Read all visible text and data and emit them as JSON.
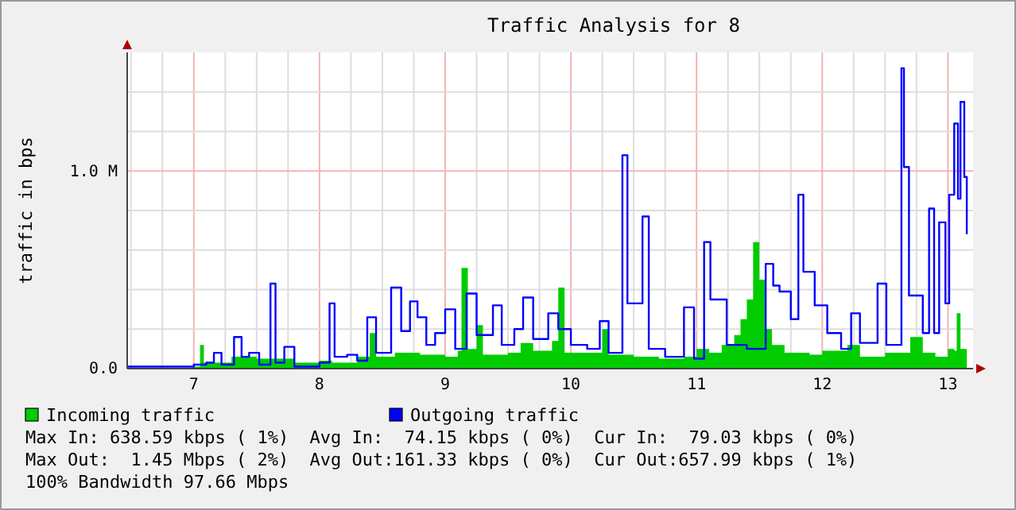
{
  "chart_data": {
    "type": "step",
    "title": "Traffic Analysis for 8",
    "ylabel": "traffic in bps",
    "xlim": [
      6.47,
      13.2
    ],
    "xticks": [
      7,
      8,
      9,
      10,
      11,
      12,
      13,
      {
        "value": 6.5,
        "label": null
      },
      {
        "value": 6.75,
        "label": null
      },
      {
        "value": 7.25,
        "label": null
      },
      {
        "value": 7.5,
        "label": null
      },
      {
        "value": 7.75,
        "label": null
      },
      {
        "value": 8.25,
        "label": null
      },
      {
        "value": 8.5,
        "label": null
      },
      {
        "value": 8.75,
        "label": null
      },
      {
        "value": 9.25,
        "label": null
      },
      {
        "value": 9.5,
        "label": null
      },
      {
        "value": 9.75,
        "label": null
      },
      {
        "value": 10.25,
        "label": null
      },
      {
        "value": 10.5,
        "label": null
      },
      {
        "value": 10.75,
        "label": null
      },
      {
        "value": 11.25,
        "label": null
      },
      {
        "value": 11.5,
        "label": null
      },
      {
        "value": 11.75,
        "label": null
      },
      {
        "value": 12.25,
        "label": null
      },
      {
        "value": 12.5,
        "label": null
      },
      {
        "value": 12.75,
        "label": null
      }
    ],
    "ylim": [
      0,
      1600000
    ],
    "yticks": [
      {
        "value": 0,
        "label": "0.0"
      },
      {
        "value": 1000000,
        "label": "1.0 M"
      },
      {
        "value": 200000,
        "label": null
      },
      {
        "value": 400000,
        "label": null
      },
      {
        "value": 600000,
        "label": null
      },
      {
        "value": 800000,
        "label": null
      },
      {
        "value": 1200000,
        "label": null
      },
      {
        "value": 1400000,
        "label": null
      }
    ],
    "grid": true,
    "legend": "bottom left",
    "series": [
      {
        "name": "Incoming traffic",
        "type": "area",
        "color": "#00cc00",
        "x": [
          6.47,
          6.8,
          7.0,
          7.05,
          7.08,
          7.3,
          7.5,
          7.8,
          8.0,
          8.1,
          8.3,
          8.4,
          8.45,
          8.6,
          8.8,
          9.0,
          9.1,
          9.13,
          9.18,
          9.25,
          9.3,
          9.5,
          9.6,
          9.7,
          9.85,
          9.9,
          9.95,
          10.1,
          10.25,
          10.3,
          10.5,
          10.7,
          10.9,
          11.0,
          11.1,
          11.2,
          11.3,
          11.35,
          11.4,
          11.45,
          11.5,
          11.55,
          11.6,
          11.7,
          11.9,
          12.0,
          12.2,
          12.3,
          12.5,
          12.7,
          12.8,
          12.9,
          13.0,
          13.05,
          13.07,
          13.1,
          13.15
        ],
        "values": [
          0,
          0,
          10000,
          120000,
          30000,
          60000,
          50000,
          30000,
          40000,
          30000,
          60000,
          180000,
          60000,
          80000,
          70000,
          60000,
          90000,
          510000,
          100000,
          220000,
          70000,
          80000,
          130000,
          90000,
          140000,
          410000,
          80000,
          80000,
          200000,
          70000,
          60000,
          50000,
          60000,
          100000,
          80000,
          120000,
          170000,
          250000,
          350000,
          640000,
          450000,
          200000,
          120000,
          80000,
          70000,
          90000,
          120000,
          60000,
          80000,
          160000,
          80000,
          60000,
          100000,
          90000,
          280000,
          100000,
          80000
        ]
      },
      {
        "name": "Outgoing traffic",
        "color": "#0000ff",
        "x": [
          6.47,
          6.8,
          7.0,
          7.1,
          7.16,
          7.22,
          7.32,
          7.38,
          7.44,
          7.52,
          7.61,
          7.65,
          7.72,
          7.8,
          8.0,
          8.08,
          8.12,
          8.22,
          8.3,
          8.38,
          8.45,
          8.57,
          8.65,
          8.72,
          8.78,
          8.85,
          8.92,
          9.0,
          9.08,
          9.17,
          9.25,
          9.38,
          9.45,
          9.55,
          9.62,
          9.7,
          9.82,
          9.9,
          10.0,
          10.13,
          10.23,
          10.3,
          10.41,
          10.45,
          10.57,
          10.62,
          10.75,
          10.9,
          10.98,
          11.06,
          11.11,
          11.24,
          11.4,
          11.55,
          11.61,
          11.66,
          11.75,
          11.81,
          11.85,
          11.94,
          12.04,
          12.15,
          12.23,
          12.3,
          12.44,
          12.51,
          12.63,
          12.65,
          12.69,
          12.8,
          12.85,
          12.89,
          12.93,
          12.98,
          13.01,
          13.05,
          13.08,
          13.1,
          13.13,
          13.15
        ],
        "values": [
          10000,
          10000,
          20000,
          30000,
          80000,
          20000,
          160000,
          60000,
          80000,
          20000,
          430000,
          30000,
          110000,
          10000,
          30000,
          330000,
          60000,
          70000,
          40000,
          260000,
          80000,
          410000,
          190000,
          340000,
          260000,
          120000,
          180000,
          300000,
          100000,
          380000,
          170000,
          320000,
          120000,
          200000,
          360000,
          150000,
          280000,
          200000,
          120000,
          100000,
          240000,
          80000,
          1080000,
          330000,
          770000,
          100000,
          60000,
          310000,
          50000,
          640000,
          350000,
          120000,
          100000,
          530000,
          420000,
          390000,
          250000,
          880000,
          490000,
          320000,
          180000,
          100000,
          280000,
          130000,
          430000,
          120000,
          1520000,
          1020000,
          370000,
          180000,
          810000,
          180000,
          740000,
          330000,
          880000,
          1240000,
          860000,
          1350000,
          970000,
          680000
        ]
      }
    ],
    "annotations": [
      "Max In: 638.59 kbps ( 1%)  Avg In:  74.15 kbps ( 0%)  Cur In:  79.03 kbps ( 0%)",
      "Max Out:  1.45 Mbps ( 2%)  Avg Out:161.33 kbps ( 0%)  Cur Out:657.99 kbps ( 1%)",
      "100% Bandwidth 97.66 Mbps"
    ]
  }
}
